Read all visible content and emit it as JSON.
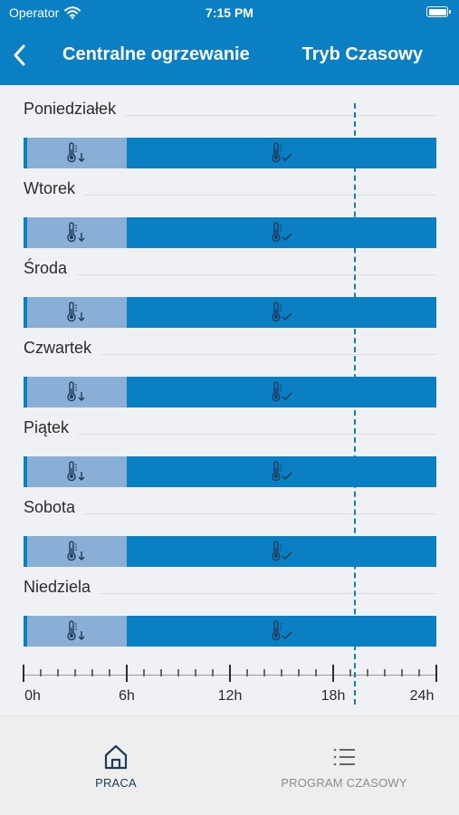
{
  "status_bar": {
    "carrier": "Operator",
    "time": "7:15 PM"
  },
  "header": {
    "title": "Centralne ogrzewanie",
    "mode": "Tryb Czasowy"
  },
  "schedule": {
    "days": [
      {
        "name": "Poniedziałek",
        "low_until_h": 6
      },
      {
        "name": "Wtorek",
        "low_until_h": 6
      },
      {
        "name": "Środa",
        "low_until_h": 6
      },
      {
        "name": "Czwartek",
        "low_until_h": 6
      },
      {
        "name": "Piątek",
        "low_until_h": 6
      },
      {
        "name": "Sobota",
        "low_until_h": 6
      },
      {
        "name": "Niedziela",
        "low_until_h": 6
      }
    ],
    "current_time_h": 19.25,
    "axis_labels": [
      "0h",
      "6h",
      "12h",
      "18h",
      "24h"
    ],
    "colors": {
      "comfort": "#0b7fc4",
      "reduced": "#8aafd6"
    },
    "icons": {
      "reduced": "thermometer-down-icon",
      "comfort": "thermometer-check-icon"
    }
  },
  "tab_bar": {
    "tabs": [
      {
        "label": "PRACA",
        "icon": "home-icon",
        "active": true
      },
      {
        "label": "PROGRAM CZASOWY",
        "icon": "list-icon",
        "active": false
      }
    ]
  }
}
